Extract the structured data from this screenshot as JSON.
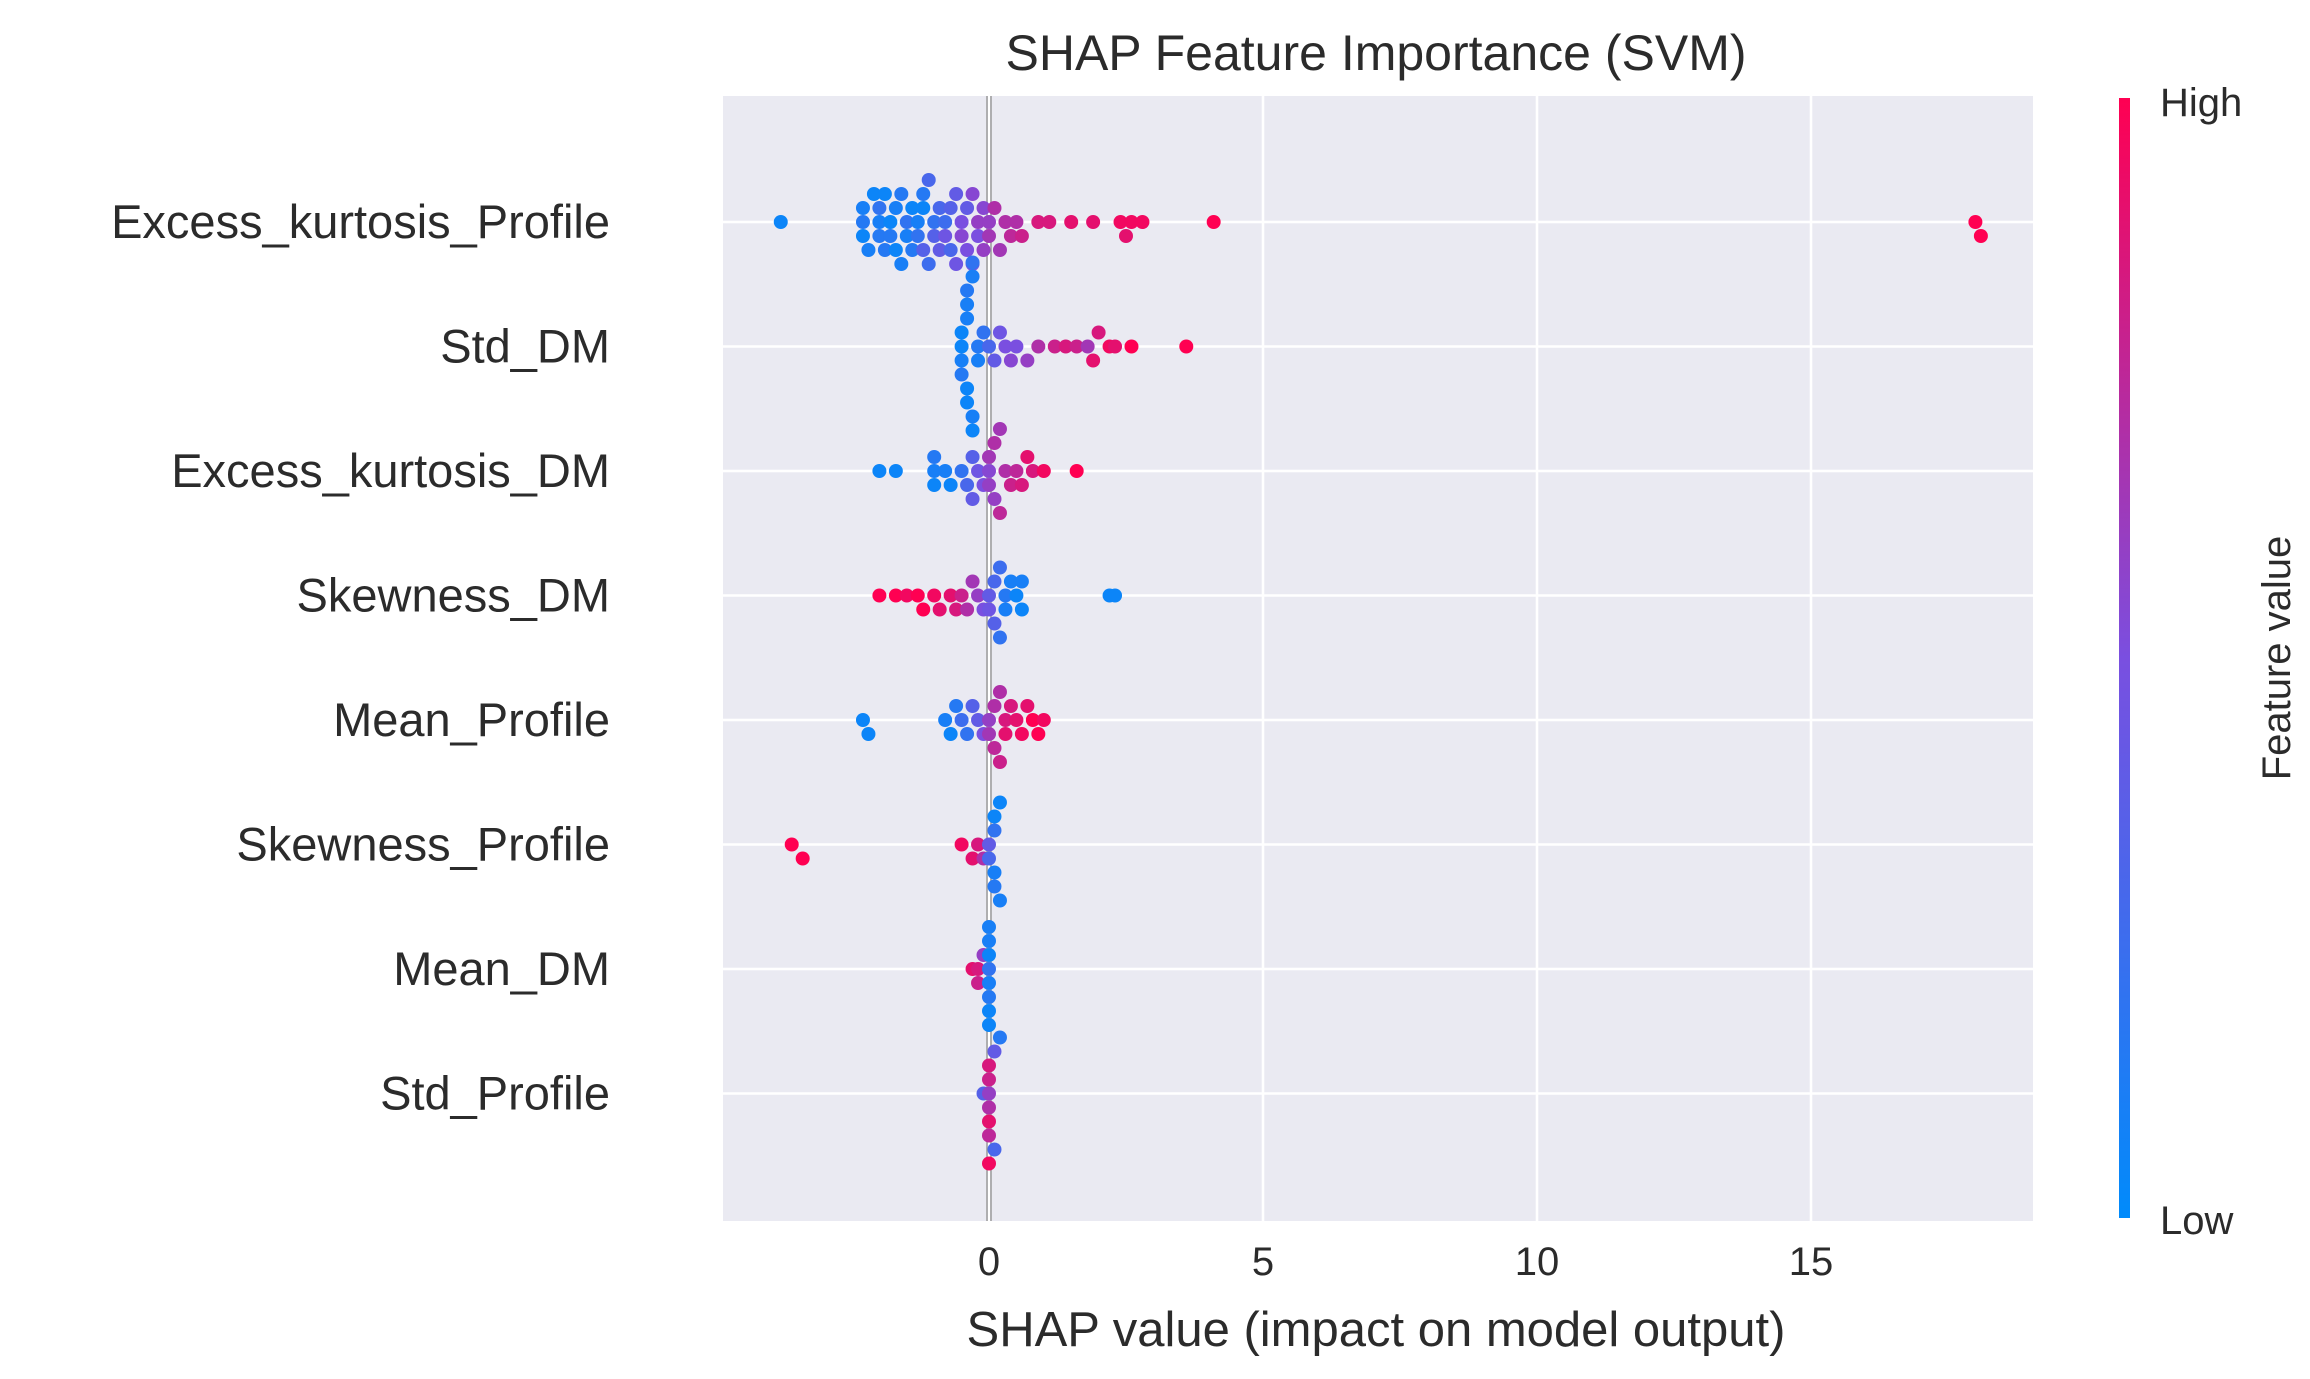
{
  "chart_data": {
    "type": "scatter",
    "subtype": "shap-beeswarm",
    "title": "SHAP Feature Importance (SVM)",
    "xlabel": "SHAP value (impact on model output)",
    "ylabel": "",
    "xlim": [
      -4.9,
      19.1
    ],
    "xticks": [
      0,
      5,
      10,
      15
    ],
    "grid": true,
    "background": "#eaeaf2",
    "features": [
      "Excess_kurtosis_Profile",
      "Std_DM",
      "Excess_kurtosis_DM",
      "Skewness_DM",
      "Mean_Profile",
      "Skewness_Profile",
      "Mean_DM",
      "Std_Profile"
    ],
    "colorbar": {
      "label": "Feature value",
      "high_label": "High",
      "low_label": "Low",
      "low_color": "#008bfb",
      "high_color": "#ff0052"
    },
    "series": [
      {
        "feature": "Excess_kurtosis_Profile",
        "points": [
          [
            -3.8,
            0.05
          ],
          [
            -2.3,
            0.15
          ],
          [
            -2.3,
            0.05
          ],
          [
            -2.3,
            0.1
          ],
          [
            -2.2,
            0.1
          ],
          [
            -2.1,
            0.05
          ],
          [
            -2.0,
            0.1
          ],
          [
            -2.0,
            0.15
          ],
          [
            -2.0,
            0.2
          ],
          [
            -1.9,
            0.15
          ],
          [
            -1.9,
            0.05
          ],
          [
            -1.8,
            0.05
          ],
          [
            -1.8,
            0.15
          ],
          [
            -1.7,
            0.1
          ],
          [
            -1.7,
            0.05
          ],
          [
            -1.6,
            0.15
          ],
          [
            -1.6,
            0.1
          ],
          [
            -1.5,
            0.2
          ],
          [
            -1.5,
            0.1
          ],
          [
            -1.4,
            0.05
          ],
          [
            -1.4,
            0.15
          ],
          [
            -1.3,
            0.1
          ],
          [
            -1.3,
            0.2
          ],
          [
            -1.2,
            0.05
          ],
          [
            -1.2,
            0.35
          ],
          [
            -1.2,
            0.15
          ],
          [
            -1.1,
            0.25
          ],
          [
            -1.1,
            0.3
          ],
          [
            -1.0,
            0.2
          ],
          [
            -1.0,
            0.35
          ],
          [
            -0.9,
            0.3
          ],
          [
            -0.9,
            0.4
          ],
          [
            -0.8,
            0.25
          ],
          [
            -0.8,
            0.45
          ],
          [
            -0.7,
            0.35
          ],
          [
            -0.7,
            0.3
          ],
          [
            -0.6,
            0.4
          ],
          [
            -0.6,
            0.45
          ],
          [
            -0.5,
            0.5
          ],
          [
            -0.5,
            0.55
          ],
          [
            -0.4,
            0.4
          ],
          [
            -0.4,
            0.5
          ],
          [
            -0.3,
            0.55
          ],
          [
            -0.3,
            0.45
          ],
          [
            -0.2,
            0.6
          ],
          [
            -0.2,
            0.5
          ],
          [
            -0.1,
            0.55
          ],
          [
            -0.1,
            0.6
          ],
          [
            0.0,
            0.6
          ],
          [
            0.0,
            0.65
          ],
          [
            0.1,
            0.7
          ],
          [
            0.2,
            0.65
          ],
          [
            0.3,
            0.7
          ],
          [
            0.4,
            0.75
          ],
          [
            0.5,
            0.7
          ],
          [
            0.6,
            0.8
          ],
          [
            0.9,
            0.85
          ],
          [
            1.1,
            0.85
          ],
          [
            1.5,
            0.9
          ],
          [
            1.9,
            0.9
          ],
          [
            2.4,
            0.95
          ],
          [
            2.5,
            0.9
          ],
          [
            2.6,
            0.95
          ],
          [
            2.8,
            0.95
          ],
          [
            4.1,
            1.0
          ],
          [
            18.0,
            1.0
          ],
          [
            18.1,
            1.0
          ]
        ]
      },
      {
        "feature": "Std_DM",
        "points": [
          [
            -0.5,
            0.05
          ],
          [
            -0.5,
            0.1
          ],
          [
            -0.5,
            0.05
          ],
          [
            -0.5,
            0.15
          ],
          [
            -0.4,
            0.1
          ],
          [
            -0.4,
            0.05
          ],
          [
            -0.4,
            0.1
          ],
          [
            -0.4,
            0.05
          ],
          [
            -0.4,
            0.15
          ],
          [
            -0.3,
            0.1
          ],
          [
            -0.3,
            0.1
          ],
          [
            -0.3,
            0.05
          ],
          [
            -0.3,
            0.2
          ],
          [
            -0.2,
            0.15
          ],
          [
            -0.2,
            0.1
          ],
          [
            -0.1,
            0.2
          ],
          [
            0.0,
            0.3
          ],
          [
            0.1,
            0.4
          ],
          [
            0.2,
            0.45
          ],
          [
            0.3,
            0.5
          ],
          [
            0.4,
            0.55
          ],
          [
            0.5,
            0.5
          ],
          [
            0.7,
            0.6
          ],
          [
            0.9,
            0.7
          ],
          [
            1.2,
            0.8
          ],
          [
            1.4,
            0.85
          ],
          [
            1.6,
            0.8
          ],
          [
            1.8,
            0.65
          ],
          [
            1.9,
            0.9
          ],
          [
            2.0,
            0.85
          ],
          [
            2.2,
            0.95
          ],
          [
            2.3,
            0.9
          ],
          [
            2.6,
            1.0
          ],
          [
            3.6,
            1.0
          ]
        ]
      },
      {
        "feature": "Excess_kurtosis_DM",
        "points": [
          [
            -2.0,
            0.05
          ],
          [
            -1.7,
            0.05
          ],
          [
            -1.0,
            0.1
          ],
          [
            -1.0,
            0.05
          ],
          [
            -1.0,
            0.15
          ],
          [
            -0.8,
            0.1
          ],
          [
            -0.7,
            0.05
          ],
          [
            -0.5,
            0.2
          ],
          [
            -0.4,
            0.3
          ],
          [
            -0.3,
            0.35
          ],
          [
            -0.3,
            0.4
          ],
          [
            -0.2,
            0.45
          ],
          [
            -0.1,
            0.5
          ],
          [
            0.0,
            0.55
          ],
          [
            0.0,
            0.6
          ],
          [
            0.0,
            0.65
          ],
          [
            0.1,
            0.6
          ],
          [
            0.1,
            0.7
          ],
          [
            0.2,
            0.75
          ],
          [
            0.2,
            0.65
          ],
          [
            0.3,
            0.7
          ],
          [
            0.4,
            0.8
          ],
          [
            0.5,
            0.75
          ],
          [
            0.6,
            0.85
          ],
          [
            0.7,
            0.9
          ],
          [
            0.8,
            0.85
          ],
          [
            1.0,
            0.95
          ],
          [
            1.6,
            1.0
          ]
        ]
      },
      {
        "feature": "Skewness_DM",
        "points": [
          [
            -2.0,
            1.0
          ],
          [
            -1.7,
            1.0
          ],
          [
            -1.5,
            0.95
          ],
          [
            -1.3,
            1.0
          ],
          [
            -1.2,
            1.0
          ],
          [
            -1.0,
            0.95
          ],
          [
            -0.9,
            0.9
          ],
          [
            -0.7,
            0.9
          ],
          [
            -0.6,
            0.85
          ],
          [
            -0.5,
            0.8
          ],
          [
            -0.4,
            0.7
          ],
          [
            -0.3,
            0.65
          ],
          [
            -0.2,
            0.6
          ],
          [
            -0.1,
            0.5
          ],
          [
            0.0,
            0.4
          ],
          [
            0.0,
            0.45
          ],
          [
            0.1,
            0.3
          ],
          [
            0.1,
            0.35
          ],
          [
            0.2,
            0.25
          ],
          [
            0.2,
            0.2
          ],
          [
            0.3,
            0.15
          ],
          [
            0.3,
            0.1
          ],
          [
            0.4,
            0.1
          ],
          [
            0.5,
            0.05
          ],
          [
            0.6,
            0.05
          ],
          [
            0.6,
            0.1
          ],
          [
            2.2,
            0.05
          ],
          [
            2.3,
            0.05
          ]
        ]
      },
      {
        "feature": "Mean_Profile",
        "points": [
          [
            -2.3,
            0.05
          ],
          [
            -2.2,
            0.05
          ],
          [
            -0.8,
            0.1
          ],
          [
            -0.7,
            0.05
          ],
          [
            -0.6,
            0.15
          ],
          [
            -0.5,
            0.25
          ],
          [
            -0.4,
            0.2
          ],
          [
            -0.3,
            0.35
          ],
          [
            -0.2,
            0.4
          ],
          [
            -0.1,
            0.5
          ],
          [
            0.0,
            0.6
          ],
          [
            0.0,
            0.65
          ],
          [
            0.1,
            0.7
          ],
          [
            0.1,
            0.75
          ],
          [
            0.2,
            0.7
          ],
          [
            0.2,
            0.8
          ],
          [
            0.3,
            0.85
          ],
          [
            0.3,
            0.9
          ],
          [
            0.4,
            0.85
          ],
          [
            0.5,
            0.9
          ],
          [
            0.6,
            0.95
          ],
          [
            0.7,
            0.9
          ],
          [
            0.8,
            1.0
          ],
          [
            0.9,
            1.0
          ],
          [
            1.0,
            0.95
          ]
        ]
      },
      {
        "feature": "Skewness_Profile",
        "points": [
          [
            -3.6,
            1.0
          ],
          [
            -3.4,
            1.0
          ],
          [
            -0.5,
            0.95
          ],
          [
            -0.3,
            0.9
          ],
          [
            -0.2,
            0.85
          ],
          [
            -0.1,
            0.7
          ],
          [
            0.0,
            0.4
          ],
          [
            0.0,
            0.3
          ],
          [
            0.1,
            0.2
          ],
          [
            0.1,
            0.1
          ],
          [
            0.1,
            0.05
          ],
          [
            0.1,
            0.15
          ],
          [
            0.2,
            0.05
          ],
          [
            0.2,
            0.1
          ]
        ]
      },
      {
        "feature": "Mean_DM",
        "points": [
          [
            -0.3,
            0.9
          ],
          [
            -0.2,
            0.85
          ],
          [
            -0.2,
            0.8
          ],
          [
            -0.1,
            0.6
          ],
          [
            0.0,
            0.2
          ],
          [
            0.0,
            0.1
          ],
          [
            0.0,
            0.05
          ],
          [
            0.0,
            0.15
          ],
          [
            0.0,
            0.1
          ],
          [
            0.0,
            0.05
          ],
          [
            0.0,
            0.1
          ],
          [
            0.0,
            0.05
          ]
        ]
      },
      {
        "feature": "Std_Profile",
        "points": [
          [
            -0.1,
            0.35
          ],
          [
            0.0,
            0.6
          ],
          [
            0.0,
            0.7
          ],
          [
            0.0,
            0.8
          ],
          [
            0.0,
            0.9
          ],
          [
            0.0,
            0.85
          ],
          [
            0.0,
            0.75
          ],
          [
            0.1,
            0.4
          ],
          [
            0.1,
            0.3
          ],
          [
            0.2,
            0.15
          ],
          [
            0.0,
            0.95
          ]
        ]
      }
    ]
  }
}
